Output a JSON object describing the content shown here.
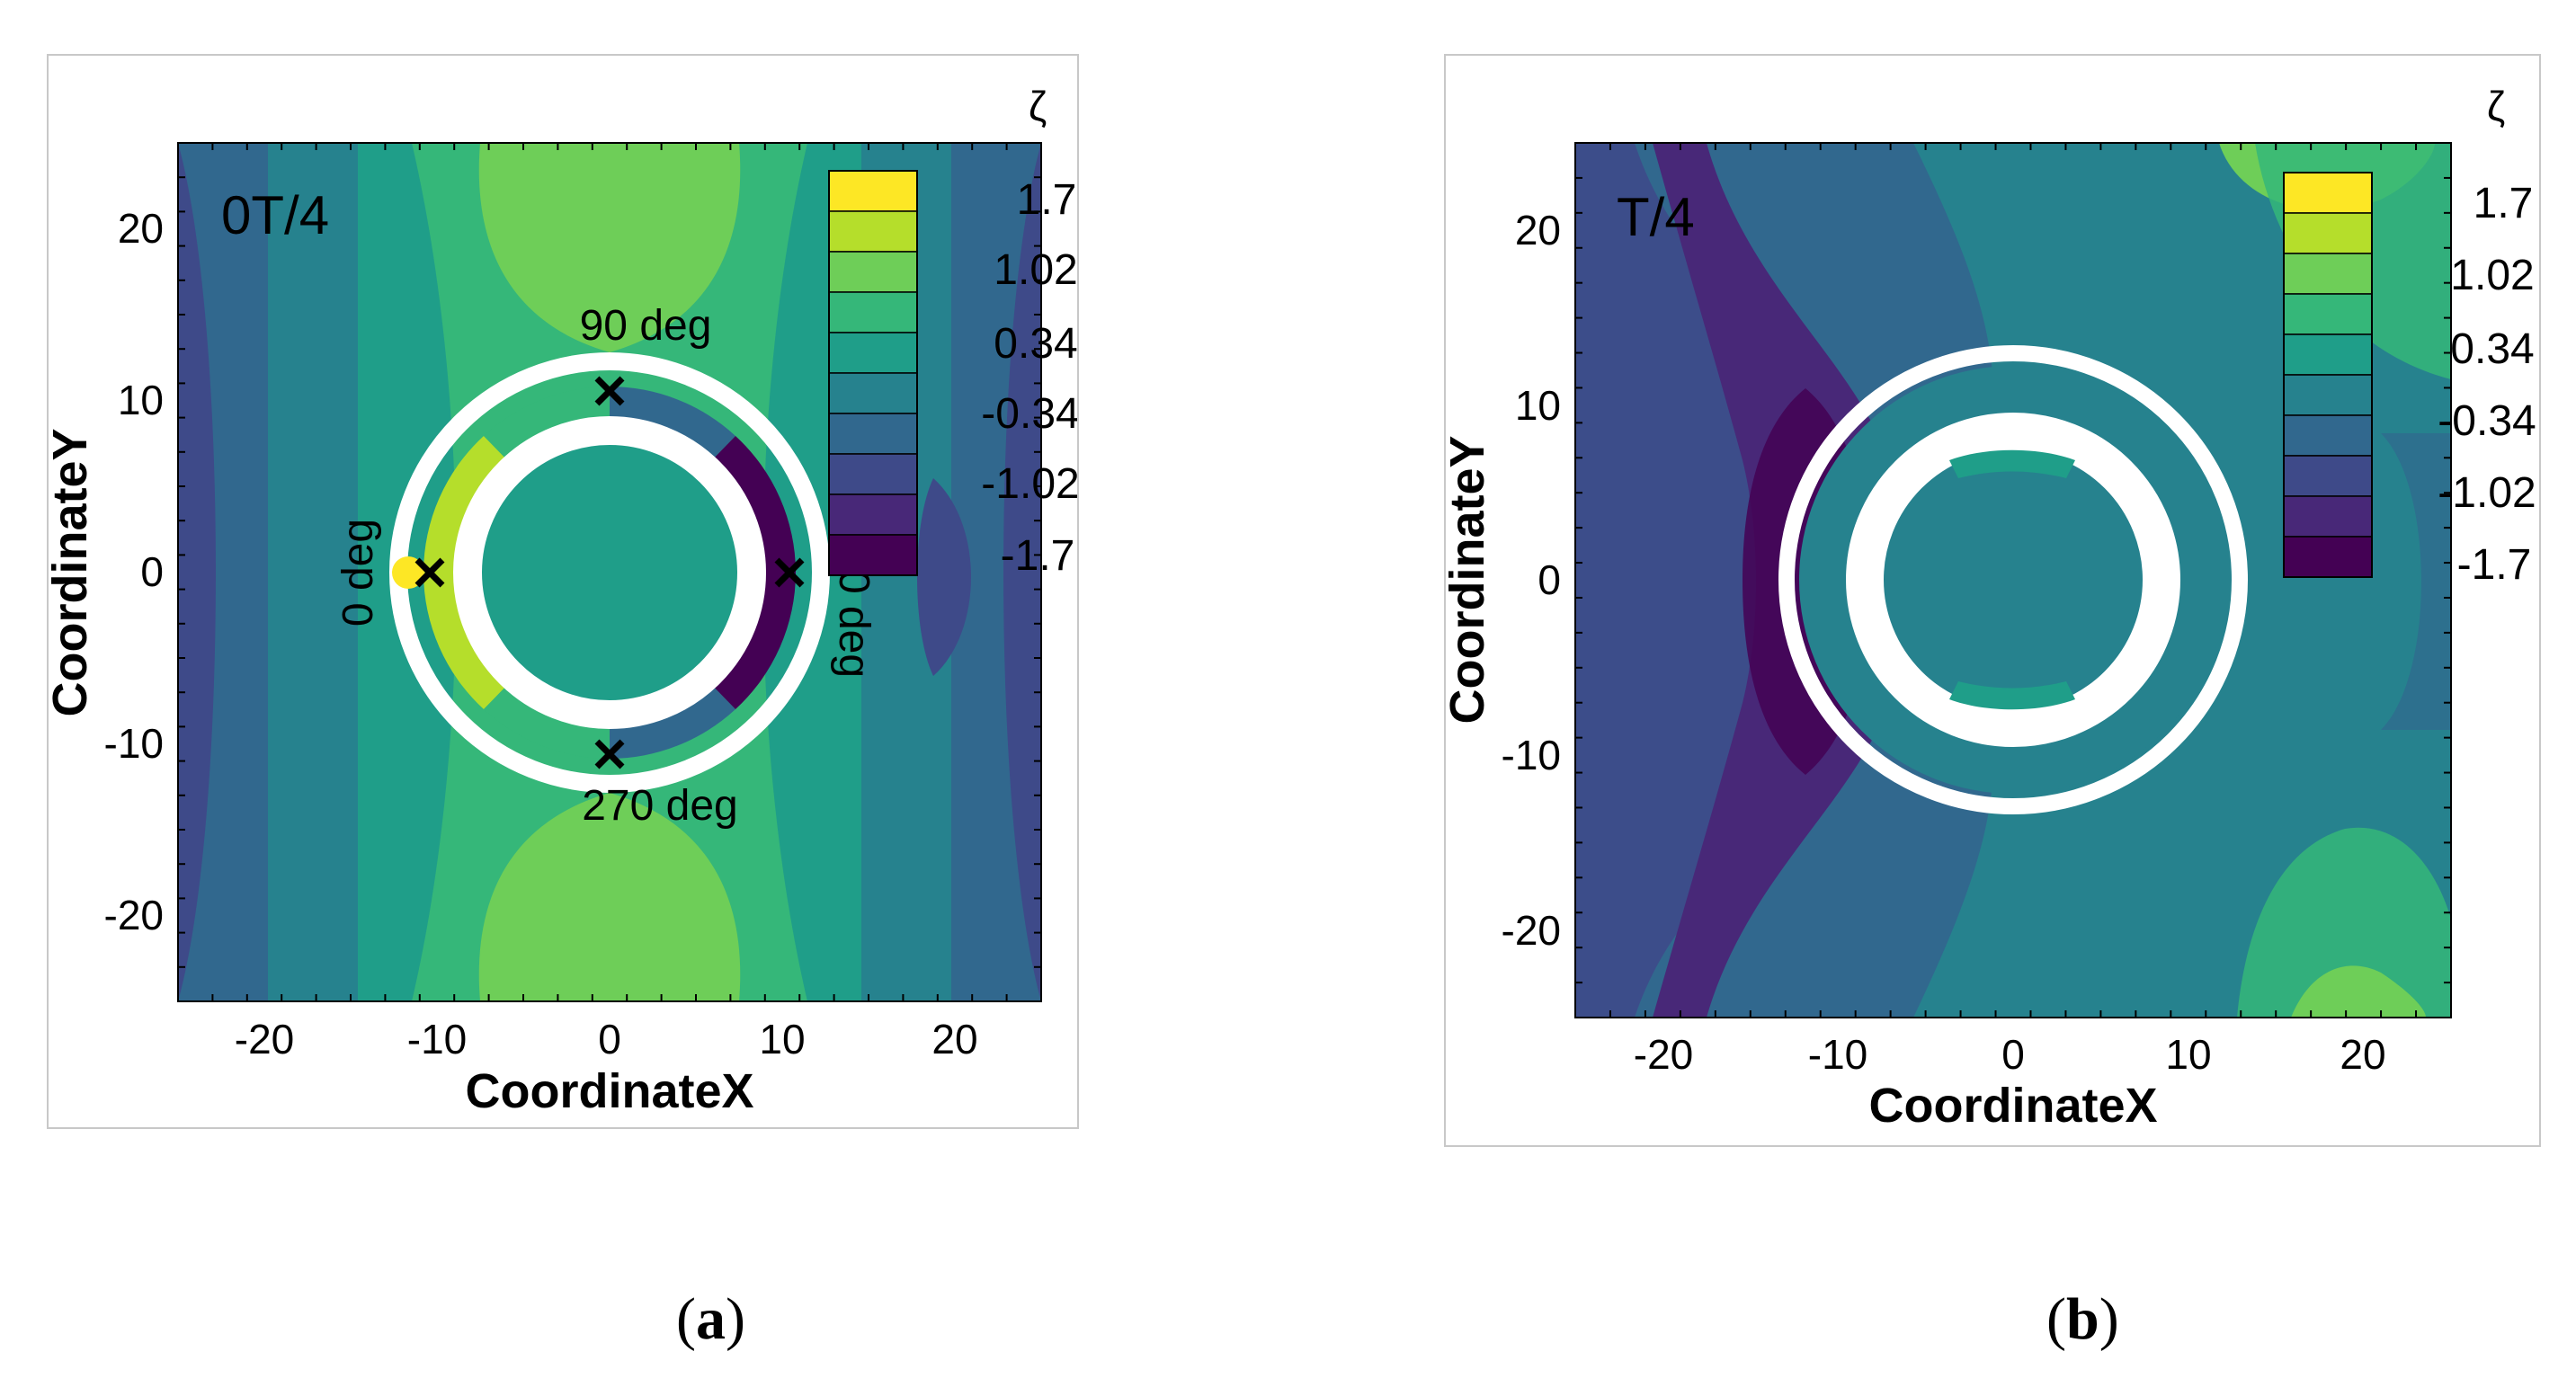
{
  "chart_data": [
    {
      "type": "heatmap",
      "panel": "a",
      "time_label": "0T/4",
      "xlabel": "CoordinateX",
      "ylabel": "CoordinateY",
      "xlim": [
        -25,
        25
      ],
      "ylim": [
        -25,
        25
      ],
      "x_ticks": [
        "-20",
        "-10",
        "0",
        "10",
        "20"
      ],
      "y_ticks": [
        "20",
        "10",
        "0",
        "-10",
        "-20"
      ],
      "colorbar": {
        "title": "ζ",
        "tick_labels": [
          "1.7",
          "1.02",
          "0.34",
          "-0.34",
          "-1.02",
          "-1.7"
        ],
        "range": [
          -1.7,
          1.7
        ],
        "levels": 10
      },
      "annotations": [
        "90 deg",
        "0 deg",
        "0 deg",
        "270 deg"
      ],
      "markers": [
        {
          "label": "x",
          "x": -10.5,
          "y": 0
        },
        {
          "label": "x",
          "x": 0,
          "y": 10.5
        },
        {
          "label": "x",
          "x": 10.5,
          "y": 0
        },
        {
          "label": "x",
          "x": 0,
          "y": -10.5
        }
      ]
    },
    {
      "type": "heatmap",
      "panel": "b",
      "time_label": "T/4",
      "xlabel": "CoordinateX",
      "ylabel": "CoordinateY",
      "xlim": [
        -25,
        25
      ],
      "ylim": [
        -25,
        25
      ],
      "x_ticks": [
        "-20",
        "-10",
        "0",
        "10",
        "20"
      ],
      "y_ticks": [
        "20",
        "10",
        "0",
        "-10",
        "-20"
      ],
      "colorbar": {
        "title": "ζ",
        "tick_labels": [
          "1.7",
          "1.02",
          "0.34",
          "-0.34",
          "-1.02",
          "-1.7"
        ],
        "range": [
          -1.7,
          1.7
        ],
        "levels": 10
      }
    }
  ],
  "captions": {
    "a": {
      "open": "(",
      "letter": "a",
      "close": ")"
    },
    "b": {
      "open": "(",
      "letter": "b",
      "close": ")"
    }
  },
  "colors": {
    "colormap": [
      "#440154",
      "#482878",
      "#3e4a89",
      "#31688e",
      "#26828e",
      "#1f9e89",
      "#35b779",
      "#6ece58",
      "#b5de2b",
      "#fde725"
    ],
    "ring": "#ffffff"
  }
}
